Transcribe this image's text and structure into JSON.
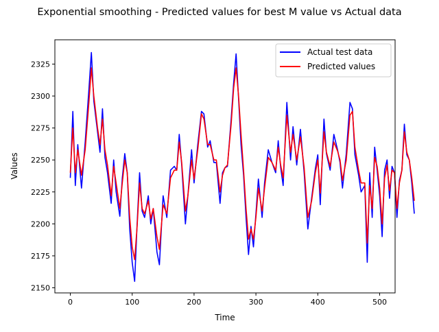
{
  "chart_data": {
    "type": "line",
    "title": "Exponential smoothing - Predicted values for best M value vs Actual data",
    "xlabel": "Time",
    "ylabel": "Values",
    "xlim": [
      -25,
      525
    ],
    "ylim": [
      2146,
      2344
    ],
    "xticks": [
      0,
      100,
      200,
      300,
      400,
      500
    ],
    "yticks": [
      2150,
      2175,
      2200,
      2225,
      2250,
      2275,
      2300,
      2325
    ],
    "grid": false,
    "legend_position": "top-right",
    "series": [
      {
        "name": "Actual test data",
        "color": "#0000ff",
        "anchors": [
          [
            0,
            2236
          ],
          [
            4,
            2288
          ],
          [
            8,
            2230
          ],
          [
            12,
            2262
          ],
          [
            18,
            2228
          ],
          [
            24,
            2264
          ],
          [
            30,
            2305
          ],
          [
            34,
            2334
          ],
          [
            38,
            2296
          ],
          [
            44,
            2272
          ],
          [
            48,
            2256
          ],
          [
            52,
            2290
          ],
          [
            56,
            2252
          ],
          [
            60,
            2240
          ],
          [
            66,
            2216
          ],
          [
            70,
            2250
          ],
          [
            74,
            2225
          ],
          [
            80,
            2206
          ],
          [
            84,
            2236
          ],
          [
            88,
            2255
          ],
          [
            92,
            2240
          ],
          [
            96,
            2196
          ],
          [
            100,
            2170
          ],
          [
            104,
            2155
          ],
          [
            108,
            2200
          ],
          [
            112,
            2240
          ],
          [
            116,
            2210
          ],
          [
            120,
            2205
          ],
          [
            126,
            2222
          ],
          [
            130,
            2200
          ],
          [
            134,
            2212
          ],
          [
            140,
            2178
          ],
          [
            144,
            2168
          ],
          [
            150,
            2222
          ],
          [
            156,
            2205
          ],
          [
            162,
            2242
          ],
          [
            168,
            2245
          ],
          [
            172,
            2242
          ],
          [
            176,
            2270
          ],
          [
            180,
            2246
          ],
          [
            186,
            2200
          ],
          [
            190,
            2222
          ],
          [
            196,
            2258
          ],
          [
            200,
            2232
          ],
          [
            206,
            2262
          ],
          [
            212,
            2288
          ],
          [
            216,
            2286
          ],
          [
            222,
            2260
          ],
          [
            226,
            2265
          ],
          [
            232,
            2248
          ],
          [
            236,
            2248
          ],
          [
            242,
            2216
          ],
          [
            246,
            2240
          ],
          [
            250,
            2244
          ],
          [
            254,
            2245
          ],
          [
            260,
            2282
          ],
          [
            264,
            2310
          ],
          [
            268,
            2333
          ],
          [
            272,
            2298
          ],
          [
            276,
            2262
          ],
          [
            280,
            2238
          ],
          [
            284,
            2205
          ],
          [
            288,
            2176
          ],
          [
            292,
            2198
          ],
          [
            296,
            2182
          ],
          [
            300,
            2208
          ],
          [
            304,
            2235
          ],
          [
            310,
            2205
          ],
          [
            314,
            2232
          ],
          [
            320,
            2258
          ],
          [
            326,
            2248
          ],
          [
            332,
            2240
          ],
          [
            336,
            2265
          ],
          [
            340,
            2244
          ],
          [
            344,
            2230
          ],
          [
            350,
            2295
          ],
          [
            356,
            2250
          ],
          [
            360,
            2276
          ],
          [
            366,
            2246
          ],
          [
            372,
            2274
          ],
          [
            378,
            2240
          ],
          [
            384,
            2196
          ],
          [
            390,
            2220
          ],
          [
            396,
            2243
          ],
          [
            400,
            2254
          ],
          [
            404,
            2215
          ],
          [
            410,
            2282
          ],
          [
            414,
            2255
          ],
          [
            420,
            2242
          ],
          [
            426,
            2270
          ],
          [
            432,
            2258
          ],
          [
            436,
            2248
          ],
          [
            440,
            2228
          ],
          [
            446,
            2255
          ],
          [
            452,
            2295
          ],
          [
            456,
            2290
          ],
          [
            460,
            2254
          ],
          [
            466,
            2238
          ],
          [
            470,
            2225
          ],
          [
            476,
            2230
          ],
          [
            480,
            2170
          ],
          [
            484,
            2240
          ],
          [
            488,
            2205
          ],
          [
            492,
            2260
          ],
          [
            496,
            2242
          ],
          [
            500,
            2222
          ],
          [
            504,
            2190
          ],
          [
            508,
            2242
          ],
          [
            512,
            2250
          ],
          [
            516,
            2220
          ],
          [
            520,
            2245
          ],
          [
            524,
            2240
          ],
          [
            528,
            2205
          ],
          [
            532,
            2234
          ],
          [
            536,
            2242
          ],
          [
            540,
            2278
          ],
          [
            544,
            2254
          ],
          [
            548,
            2250
          ],
          [
            552,
            2232
          ],
          [
            556,
            2208
          ]
        ]
      },
      {
        "name": "Predicted values",
        "color": "#ff0000",
        "anchors": [
          [
            0,
            2240
          ],
          [
            4,
            2275
          ],
          [
            8,
            2240
          ],
          [
            12,
            2258
          ],
          [
            18,
            2238
          ],
          [
            24,
            2258
          ],
          [
            30,
            2295
          ],
          [
            34,
            2322
          ],
          [
            38,
            2300
          ],
          [
            44,
            2275
          ],
          [
            48,
            2262
          ],
          [
            52,
            2282
          ],
          [
            56,
            2258
          ],
          [
            60,
            2246
          ],
          [
            66,
            2222
          ],
          [
            70,
            2245
          ],
          [
            74,
            2232
          ],
          [
            80,
            2212
          ],
          [
            84,
            2232
          ],
          [
            88,
            2250
          ],
          [
            92,
            2240
          ],
          [
            96,
            2205
          ],
          [
            100,
            2182
          ],
          [
            104,
            2172
          ],
          [
            108,
            2198
          ],
          [
            112,
            2232
          ],
          [
            116,
            2212
          ],
          [
            120,
            2208
          ],
          [
            126,
            2218
          ],
          [
            130,
            2204
          ],
          [
            134,
            2212
          ],
          [
            140,
            2190
          ],
          [
            144,
            2180
          ],
          [
            150,
            2215
          ],
          [
            156,
            2208
          ],
          [
            162,
            2236
          ],
          [
            168,
            2242
          ],
          [
            172,
            2242
          ],
          [
            176,
            2264
          ],
          [
            180,
            2248
          ],
          [
            186,
            2210
          ],
          [
            190,
            2222
          ],
          [
            196,
            2250
          ],
          [
            200,
            2235
          ],
          [
            206,
            2258
          ],
          [
            212,
            2286
          ],
          [
            216,
            2282
          ],
          [
            222,
            2262
          ],
          [
            226,
            2262
          ],
          [
            232,
            2250
          ],
          [
            236,
            2250
          ],
          [
            242,
            2225
          ],
          [
            246,
            2238
          ],
          [
            250,
            2244
          ],
          [
            254,
            2246
          ],
          [
            260,
            2278
          ],
          [
            264,
            2306
          ],
          [
            268,
            2322
          ],
          [
            272,
            2300
          ],
          [
            276,
            2270
          ],
          [
            280,
            2242
          ],
          [
            284,
            2212
          ],
          [
            288,
            2188
          ],
          [
            292,
            2196
          ],
          [
            296,
            2188
          ],
          [
            300,
            2205
          ],
          [
            304,
            2228
          ],
          [
            310,
            2210
          ],
          [
            314,
            2228
          ],
          [
            320,
            2252
          ],
          [
            326,
            2248
          ],
          [
            332,
            2242
          ],
          [
            336,
            2260
          ],
          [
            340,
            2246
          ],
          [
            344,
            2236
          ],
          [
            350,
            2285
          ],
          [
            356,
            2256
          ],
          [
            360,
            2270
          ],
          [
            366,
            2250
          ],
          [
            372,
            2268
          ],
          [
            378,
            2244
          ],
          [
            384,
            2205
          ],
          [
            390,
            2218
          ],
          [
            396,
            2240
          ],
          [
            400,
            2250
          ],
          [
            404,
            2224
          ],
          [
            410,
            2272
          ],
          [
            414,
            2256
          ],
          [
            420,
            2245
          ],
          [
            426,
            2264
          ],
          [
            432,
            2257
          ],
          [
            436,
            2250
          ],
          [
            440,
            2234
          ],
          [
            446,
            2250
          ],
          [
            452,
            2285
          ],
          [
            456,
            2288
          ],
          [
            460,
            2260
          ],
          [
            466,
            2242
          ],
          [
            470,
            2232
          ],
          [
            476,
            2232
          ],
          [
            480,
            2185
          ],
          [
            484,
            2230
          ],
          [
            488,
            2212
          ],
          [
            492,
            2252
          ],
          [
            496,
            2245
          ],
          [
            500,
            2228
          ],
          [
            504,
            2200
          ],
          [
            508,
            2236
          ],
          [
            512,
            2246
          ],
          [
            516,
            2226
          ],
          [
            520,
            2242
          ],
          [
            524,
            2240
          ],
          [
            528,
            2212
          ],
          [
            532,
            2232
          ],
          [
            536,
            2242
          ],
          [
            540,
            2272
          ],
          [
            544,
            2256
          ],
          [
            548,
            2250
          ],
          [
            552,
            2236
          ],
          [
            556,
            2218
          ]
        ]
      }
    ]
  }
}
